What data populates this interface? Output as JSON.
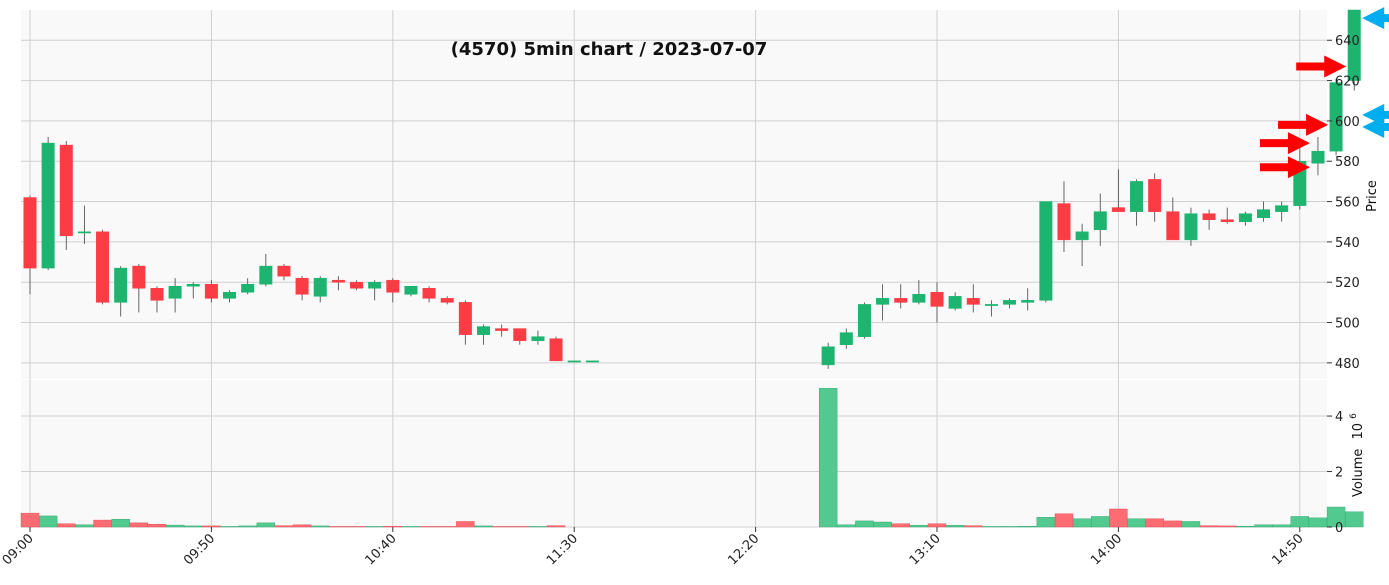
{
  "chart_data": {
    "type": "candlestick",
    "title": "(4570) 5min chart / 2023-07-07",
    "ylabel": "Price",
    "volume_label": "Volume",
    "volume_exponent_base": "10",
    "volume_exponent": "6",
    "price_ylim": [
      472,
      655
    ],
    "volume_ylim": [
      0,
      5.3
    ],
    "price_ticks": [
      "480",
      "500",
      "520",
      "540",
      "560",
      "580",
      "600",
      "620",
      "640"
    ],
    "volume_ticks": [
      "0",
      "2",
      "4"
    ],
    "x_ticks": [
      {
        "index": 0,
        "label": "09:00"
      },
      {
        "index": 10,
        "label": "09:50"
      },
      {
        "index": 20,
        "label": "10:40"
      },
      {
        "index": 30,
        "label": "11:30"
      },
      {
        "index": 40,
        "label": "12:20"
      },
      {
        "index": 50,
        "label": "13:10"
      },
      {
        "index": 60,
        "label": "14:00"
      },
      {
        "index": 70,
        "label": "14:50"
      }
    ],
    "grid": true,
    "colors": {
      "up": "#1db46f",
      "down": "#fc3c45",
      "up_volume": "#52c98f",
      "down_volume": "#fd6c73",
      "buy_marker": "#ff0000",
      "sell_marker": "#00aeef"
    },
    "candles": [
      {
        "time": "09:00",
        "open": 562,
        "high": 563,
        "low": 514,
        "close": 527,
        "volume": 0.5
      },
      {
        "time": "09:05",
        "open": 527,
        "high": 592,
        "low": 526,
        "close": 589,
        "volume": 0.4
      },
      {
        "time": "09:10",
        "open": 588,
        "high": 590,
        "low": 536,
        "close": 543,
        "volume": 0.12
      },
      {
        "time": "09:15",
        "open": 545,
        "high": 558,
        "low": 539,
        "close": 545,
        "volume": 0.08
      },
      {
        "time": "09:20",
        "open": 545,
        "high": 546,
        "low": 509,
        "close": 510,
        "volume": 0.25
      },
      {
        "time": "09:25",
        "open": 510,
        "high": 528,
        "low": 503,
        "close": 527,
        "volume": 0.28
      },
      {
        "time": "09:30",
        "open": 528,
        "high": 529,
        "low": 505,
        "close": 517,
        "volume": 0.15
      },
      {
        "time": "09:35",
        "open": 517,
        "high": 518,
        "low": 505,
        "close": 511,
        "volume": 0.1
      },
      {
        "time": "09:40",
        "open": 512,
        "high": 522,
        "low": 505,
        "close": 518,
        "volume": 0.07
      },
      {
        "time": "09:45",
        "open": 518,
        "high": 520,
        "low": 512,
        "close": 519,
        "volume": 0.04
      },
      {
        "time": "09:50",
        "open": 519,
        "high": 521,
        "low": 510,
        "close": 512,
        "volume": 0.04
      },
      {
        "time": "09:55",
        "open": 512,
        "high": 516,
        "low": 510,
        "close": 515,
        "volume": 0.02
      },
      {
        "time": "10:00",
        "open": 515,
        "high": 522,
        "low": 514,
        "close": 519,
        "volume": 0.04
      },
      {
        "time": "10:05",
        "open": 519,
        "high": 534,
        "low": 518,
        "close": 528,
        "volume": 0.15
      },
      {
        "time": "10:10",
        "open": 528,
        "high": 529,
        "low": 521,
        "close": 523,
        "volume": 0.05
      },
      {
        "time": "10:15",
        "open": 522,
        "high": 523,
        "low": 511,
        "close": 514,
        "volume": 0.08
      },
      {
        "time": "10:20",
        "open": 513,
        "high": 523,
        "low": 510,
        "close": 522,
        "volume": 0.04
      },
      {
        "time": "10:25",
        "open": 521,
        "high": 523,
        "low": 516,
        "close": 520,
        "volume": 0.02
      },
      {
        "time": "10:30",
        "open": 520,
        "high": 521,
        "low": 516,
        "close": 517,
        "volume": 0.02
      },
      {
        "time": "10:35",
        "open": 517,
        "high": 521,
        "low": 511,
        "close": 520,
        "volume": 0.02
      },
      {
        "time": "10:40",
        "open": 521,
        "high": 522,
        "low": 510,
        "close": 515,
        "volume": 0.03
      },
      {
        "time": "10:45",
        "open": 514,
        "high": 518,
        "low": 513,
        "close": 518,
        "volume": 0.02
      },
      {
        "time": "10:50",
        "open": 517,
        "high": 518,
        "low": 510,
        "close": 512,
        "volume": 0.02
      },
      {
        "time": "10:55",
        "open": 512,
        "high": 513,
        "low": 509,
        "close": 510,
        "volume": 0.02
      },
      {
        "time": "11:00",
        "open": 510,
        "high": 511,
        "low": 489,
        "close": 494,
        "volume": 0.2
      },
      {
        "time": "11:05",
        "open": 494,
        "high": 499,
        "low": 489,
        "close": 498,
        "volume": 0.04
      },
      {
        "time": "11:10",
        "open": 497,
        "high": 499,
        "low": 493,
        "close": 496,
        "volume": 0.02
      },
      {
        "time": "11:15",
        "open": 497,
        "high": 497,
        "low": 489,
        "close": 491,
        "volume": 0.02
      },
      {
        "time": "11:20",
        "open": 491,
        "high": 496,
        "low": 489,
        "close": 493,
        "volume": 0.02
      },
      {
        "time": "11:25",
        "open": 492,
        "high": 493,
        "low": 481,
        "close": 481,
        "volume": 0.05
      },
      {
        "time": "11:30",
        "open": 481,
        "high": 481,
        "low": 481,
        "close": 481,
        "volume": 0.0
      },
      {
        "time": "11:35",
        "open": 481,
        "high": 481,
        "low": 481,
        "close": 481,
        "volume": 0.0
      },
      null,
      null,
      null,
      null,
      null,
      null,
      null,
      null,
      null,
      null,
      null,
      null,
      {
        "time": "12:30",
        "open": 479,
        "high": 490,
        "low": 477,
        "close": 488,
        "volume": 5.0
      },
      {
        "time": "12:35",
        "open": 489,
        "high": 497,
        "low": 487,
        "close": 495,
        "volume": 0.08
      },
      {
        "time": "12:40",
        "open": 493,
        "high": 510,
        "low": 492,
        "close": 509,
        "volume": 0.22
      },
      {
        "time": "12:45",
        "open": 509,
        "high": 519,
        "low": 501,
        "close": 512,
        "volume": 0.18
      },
      {
        "time": "12:50",
        "open": 512,
        "high": 519,
        "low": 507,
        "close": 510,
        "volume": 0.12
      },
      {
        "time": "12:55",
        "open": 510,
        "high": 521,
        "low": 509,
        "close": 514,
        "volume": 0.06
      },
      {
        "time": "13:00",
        "open": 515,
        "high": 520,
        "low": 500,
        "close": 508,
        "volume": 0.12
      },
      {
        "time": "13:05",
        "open": 507,
        "high": 515,
        "low": 506,
        "close": 513,
        "volume": 0.06
      },
      {
        "time": "13:10",
        "open": 512,
        "high": 519,
        "low": 505,
        "close": 509,
        "volume": 0.05
      },
      {
        "time": "13:15",
        "open": 509,
        "high": 511,
        "low": 503,
        "close": 509,
        "volume": 0.02
      },
      {
        "time": "13:20",
        "open": 509,
        "high": 512,
        "low": 507,
        "close": 511,
        "volume": 0.02
      },
      {
        "time": "13:25",
        "open": 510,
        "high": 517,
        "low": 506,
        "close": 511,
        "volume": 0.03
      },
      {
        "time": "13:30",
        "open": 511,
        "high": 560,
        "low": 510,
        "close": 560,
        "volume": 0.35
      },
      {
        "time": "13:35",
        "open": 559,
        "high": 570,
        "low": 535,
        "close": 541,
        "volume": 0.48
      },
      {
        "time": "13:40",
        "open": 541,
        "high": 549,
        "low": 528,
        "close": 545,
        "volume": 0.3
      },
      {
        "time": "13:45",
        "open": 546,
        "high": 564,
        "low": 538,
        "close": 555,
        "volume": 0.38
      },
      {
        "time": "13:50",
        "open": 557,
        "high": 576,
        "low": 555,
        "close": 555,
        "volume": 0.65
      },
      {
        "time": "13:55",
        "open": 555,
        "high": 571,
        "low": 548,
        "close": 570,
        "volume": 0.3
      },
      {
        "time": "14:00",
        "open": 571,
        "high": 574,
        "low": 550,
        "close": 555,
        "volume": 0.3
      },
      {
        "time": "14:05",
        "open": 555,
        "high": 562,
        "low": 541,
        "close": 541,
        "volume": 0.22
      },
      {
        "time": "14:10",
        "open": 541,
        "high": 557,
        "low": 538,
        "close": 554,
        "volume": 0.2
      },
      {
        "time": "14:15",
        "open": 554,
        "high": 556,
        "low": 546,
        "close": 551,
        "volume": 0.05
      },
      {
        "time": "14:20",
        "open": 551,
        "high": 557,
        "low": 549,
        "close": 550,
        "volume": 0.04
      },
      {
        "time": "14:25",
        "open": 550,
        "high": 555,
        "low": 548,
        "close": 554,
        "volume": 0.03
      },
      {
        "time": "14:30",
        "open": 552,
        "high": 560,
        "low": 550,
        "close": 556,
        "volume": 0.08
      },
      {
        "time": "14:35",
        "open": 555,
        "high": 560,
        "low": 550,
        "close": 558,
        "volume": 0.08
      },
      {
        "time": "14:40",
        "open": 558,
        "high": 587,
        "low": 556,
        "close": 580,
        "volume": 0.38
      },
      {
        "time": "14:45",
        "open": 579,
        "high": 592,
        "low": 573,
        "close": 585,
        "volume": 0.33
      },
      {
        "time": "14:50",
        "open": 585,
        "high": 621,
        "low": 583,
        "close": 619,
        "volume": 0.72
      },
      {
        "time": "14:55",
        "open": 620,
        "high": 655,
        "low": 615,
        "close": 655,
        "volume": 0.55
      }
    ],
    "markers": [
      {
        "type": "buy",
        "time": "14:45",
        "price": 577
      },
      {
        "type": "buy",
        "time": "14:45",
        "price": 589
      },
      {
        "type": "buy",
        "time": "14:50",
        "price": 598
      },
      {
        "type": "buy",
        "time": "14:55",
        "price": 627
      },
      {
        "type": "sell",
        "time": "14:55",
        "price": 597
      },
      {
        "type": "sell",
        "time": "14:55",
        "price": 603
      },
      {
        "type": "sell",
        "time": "14:55",
        "price": 651
      }
    ]
  }
}
